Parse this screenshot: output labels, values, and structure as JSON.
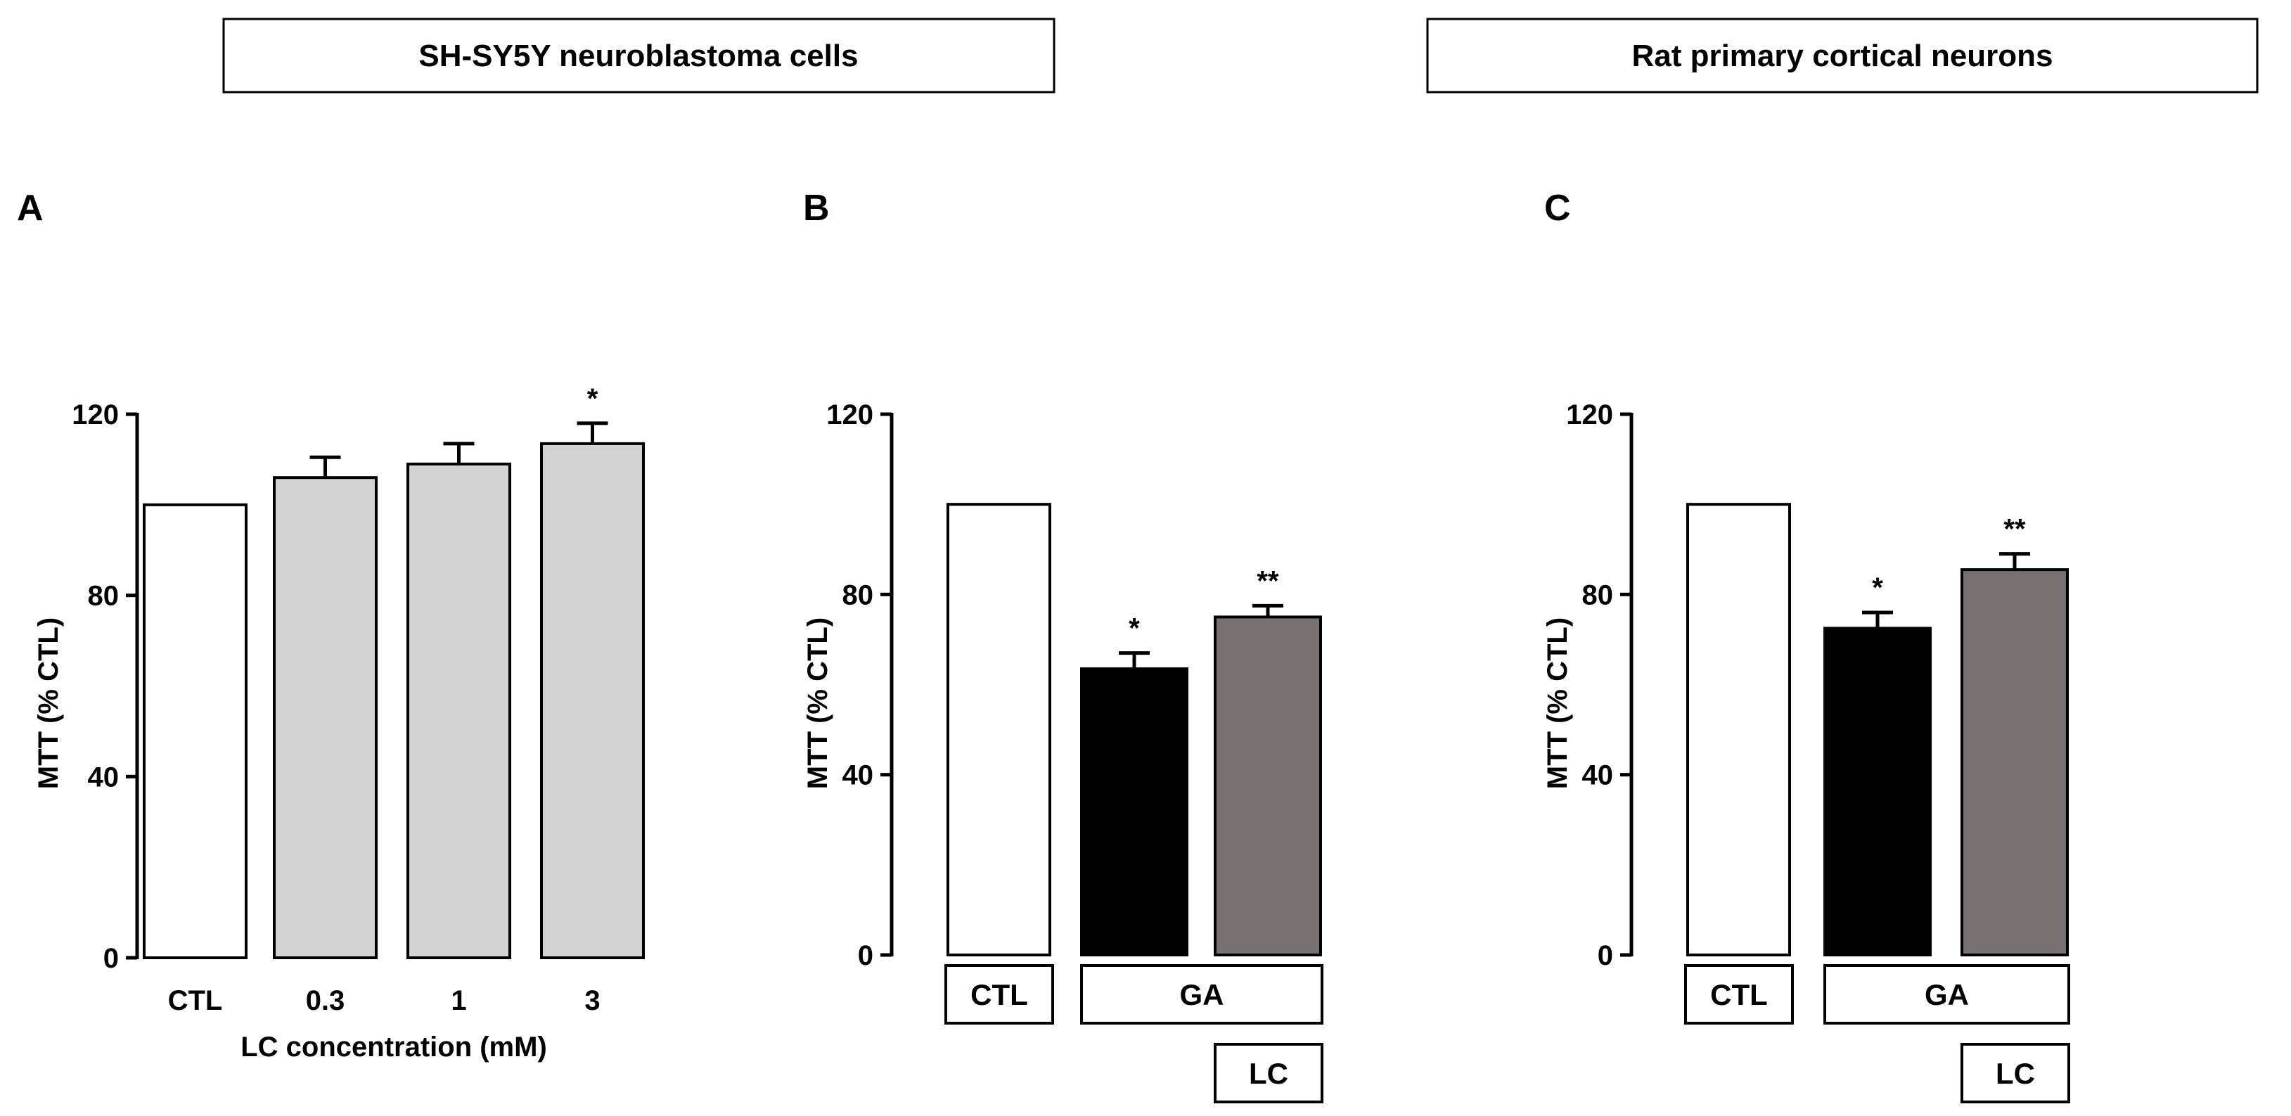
{
  "headers": [
    {
      "text": "SH-SY5Y neuroblastoma cells"
    },
    {
      "text": "Rat primary cortical neurons"
    }
  ],
  "chart_data": [
    {
      "type": "bar",
      "panel": "A",
      "ylabel": "MTT (% CTL)",
      "ylim": [
        0,
        120
      ],
      "yticks": [
        0,
        40,
        80,
        120
      ],
      "xlabel": "LC concentration (mM)",
      "categories": [
        "CTL",
        "0.3",
        "1",
        "3"
      ],
      "values": [
        100,
        106,
        109,
        113.5
      ],
      "errors": [
        0,
        4.5,
        4.5,
        4.5
      ],
      "significance": [
        "",
        "",
        "",
        "*"
      ],
      "colors": [
        "#ffffff",
        "#d3d2d3",
        "#d3d2d3",
        "#d3d2d3"
      ]
    },
    {
      "type": "bar",
      "panel": "B",
      "ylabel": "MTT (% CTL)",
      "ylim": [
        0,
        120
      ],
      "yticks": [
        0,
        40,
        80,
        120
      ],
      "categories": [
        "CTL",
        "GA",
        "GA + LC"
      ],
      "values": [
        100,
        63.5,
        75
      ],
      "errors": [
        0,
        3.5,
        2.5
      ],
      "significance": [
        "",
        "*",
        "**"
      ],
      "colors": [
        "#ffffff",
        "#000000",
        "#767071"
      ],
      "condition_labels": {
        "ctl": "CTL",
        "ga": "GA",
        "lc": "LC"
      }
    },
    {
      "type": "bar",
      "panel": "C",
      "ylabel": "MTT (% CTL)",
      "ylim": [
        0,
        120
      ],
      "yticks": [
        0,
        40,
        80,
        120
      ],
      "categories": [
        "CTL",
        "GA",
        "GA + LC"
      ],
      "values": [
        100,
        72.5,
        85.5
      ],
      "errors": [
        0,
        3.5,
        3.5
      ],
      "significance": [
        "",
        "*",
        "**"
      ],
      "colors": [
        "#ffffff",
        "#000000",
        "#767071"
      ],
      "condition_labels": {
        "ctl": "CTL",
        "ga": "GA",
        "lc": "LC"
      }
    }
  ]
}
